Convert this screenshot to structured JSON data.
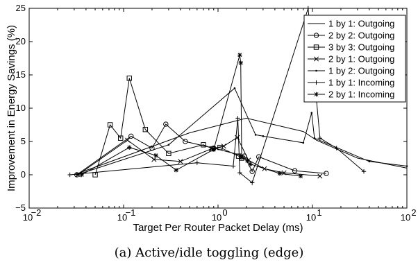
{
  "chart_data": {
    "type": "line",
    "xscale": "log",
    "xlim": [
      0.01,
      100
    ],
    "ylim": [
      -5,
      25
    ],
    "xlabel": "Target Per Router Packet Delay (ms)",
    "ylabel": "Improvement in Energy Savings (%)",
    "xticks": [
      {
        "v": 0.01,
        "label": "10"
      },
      {
        "v": 0.1,
        "label": "10"
      },
      {
        "v": 1,
        "label": "10"
      },
      {
        "v": 10,
        "label": "10"
      },
      {
        "v": 100,
        "label": "10"
      }
    ],
    "xtick_exponents": [
      "−2",
      "−1",
      "0",
      "1",
      "2"
    ],
    "yticks": [
      -5,
      0,
      5,
      10,
      15,
      20,
      25
    ],
    "grid": false,
    "legend_position": "top-right",
    "series": [
      {
        "name": "1 by 1: Outgoing",
        "marker": "none",
        "x": [
          0.03,
          0.5,
          2,
          8,
          11,
          30,
          100
        ],
        "y": [
          0,
          6.3,
          8.5,
          6.5,
          5.2,
          2.5,
          1
        ]
      },
      {
        "name": "2 by 2: Outgoing",
        "marker": "circle",
        "x": [
          0.032,
          0.12,
          0.2,
          0.28,
          0.45,
          0.9,
          1.9,
          2.3,
          2.7,
          6.5,
          14
        ],
        "y": [
          0,
          5.8,
          4,
          7.6,
          5,
          4,
          2.8,
          0.5,
          2.7,
          0.6,
          0.2
        ]
      },
      {
        "name": "3 by 3: Outgoing",
        "marker": "square",
        "x": [
          0.05,
          0.072,
          0.093,
          0.115,
          0.17,
          0.3,
          0.7,
          0.88,
          1.05,
          1.65,
          1.78
        ],
        "y": [
          0,
          7.5,
          5.5,
          14.5,
          6.8,
          3.2,
          4.5,
          3.9,
          4.1,
          2.8,
          2.5
        ]
      },
      {
        "name": "2 by 1: Outgoing",
        "marker": "x",
        "x": [
          0.033,
          0.11,
          0.21,
          0.4,
          0.85,
          1.15,
          1.6,
          2.1,
          3.1,
          5,
          12
        ],
        "y": [
          0,
          5.2,
          2.3,
          2,
          3.9,
          4.3,
          5.6,
          2.2,
          0.9,
          0.3,
          -0.2
        ]
      },
      {
        "name": "1 by 2: Outgoing",
        "marker": "dot",
        "x": [
          0.032,
          0.3,
          1.5,
          2.5,
          3,
          8,
          9.8,
          10.5,
          40,
          100
        ],
        "y": [
          0,
          4.5,
          13,
          6,
          5.8,
          4.8,
          9.3,
          5.5,
          2,
          1.3
        ]
      },
      {
        "name": "1 by 1: Incoming",
        "marker": "plus",
        "x": [
          0.027,
          0.6,
          1.45,
          1.62,
          1.7,
          2.3,
          9,
          12,
          18,
          35
        ],
        "y": [
          0,
          1.8,
          1.3,
          8.5,
          0.3,
          -1.2,
          25,
          5.5,
          4,
          0.5
        ]
      },
      {
        "name": "2 by 1: Incoming",
        "marker": "star",
        "x": [
          0.036,
          0.115,
          0.22,
          0.36,
          0.9,
          1.7,
          1.74,
          1.78,
          2.05,
          2.2,
          4.5,
          7.5
        ],
        "y": [
          0,
          4.1,
          2.9,
          0.7,
          3.8,
          18,
          16.8,
          2.6,
          2.1,
          1.6,
          0.2,
          -0.2
        ]
      }
    ]
  },
  "caption": "(a) Active/idle toggling (edge)"
}
